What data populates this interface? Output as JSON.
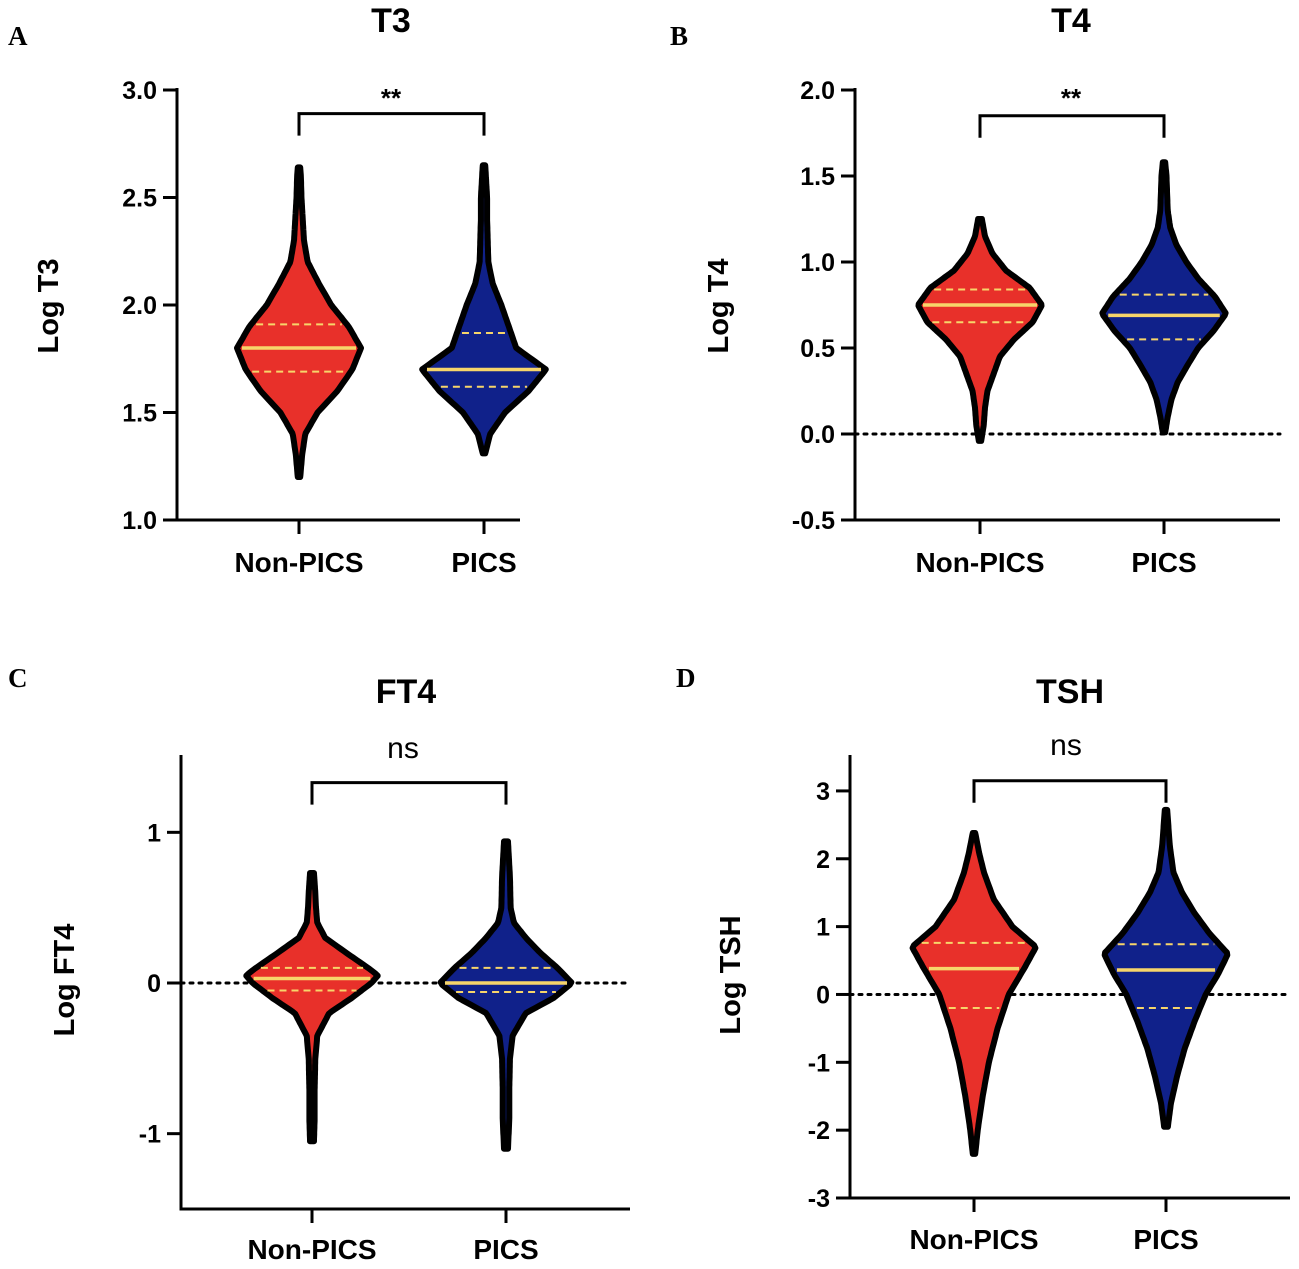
{
  "chart_data": [
    {
      "type": "violin",
      "panel_letter": "A",
      "title": "T3",
      "ylabel": "Log T3",
      "categories": [
        "Non-PICS",
        "PICS"
      ],
      "ylim": [
        1.0,
        3.0
      ],
      "yticks": [
        1.0,
        1.5,
        2.0,
        2.5,
        3.0
      ],
      "ytick_labels": [
        "1.0",
        "1.5",
        "2.0",
        "2.5",
        "3.0"
      ],
      "zero_line": false,
      "significance": {
        "label": "**",
        "between": [
          "Non-PICS",
          "PICS"
        ],
        "bar_y": 2.89
      },
      "series": [
        {
          "name": "Non-PICS",
          "color": "#e8302a",
          "min": 1.2,
          "max": 2.64,
          "q1": 1.69,
          "median": 1.8,
          "q3": 1.91,
          "density": [
            [
              1.2,
              0.02
            ],
            [
              1.3,
              0.05
            ],
            [
              1.4,
              0.1
            ],
            [
              1.5,
              0.3
            ],
            [
              1.6,
              0.62
            ],
            [
              1.7,
              0.86
            ],
            [
              1.8,
              1.0
            ],
            [
              1.9,
              0.8
            ],
            [
              2.0,
              0.52
            ],
            [
              2.1,
              0.32
            ],
            [
              2.2,
              0.14
            ],
            [
              2.3,
              0.08
            ],
            [
              2.4,
              0.06
            ],
            [
              2.5,
              0.04
            ],
            [
              2.6,
              0.03
            ],
            [
              2.64,
              0.02
            ]
          ]
        },
        {
          "name": "PICS",
          "color": "#10218a",
          "min": 1.31,
          "max": 2.65,
          "q1": 1.62,
          "median": 1.7,
          "q3": 1.87,
          "density": [
            [
              1.31,
              0.02
            ],
            [
              1.4,
              0.1
            ],
            [
              1.5,
              0.34
            ],
            [
              1.6,
              0.72
            ],
            [
              1.7,
              1.0
            ],
            [
              1.8,
              0.52
            ],
            [
              1.9,
              0.4
            ],
            [
              2.0,
              0.28
            ],
            [
              2.1,
              0.14
            ],
            [
              2.2,
              0.07
            ],
            [
              2.3,
              0.06
            ],
            [
              2.4,
              0.05
            ],
            [
              2.5,
              0.05
            ],
            [
              2.6,
              0.03
            ],
            [
              2.65,
              0.02
            ]
          ]
        }
      ]
    },
    {
      "type": "violin",
      "panel_letter": "B",
      "title": "T4",
      "ylabel": "Log T4",
      "categories": [
        "Non-PICS",
        "PICS"
      ],
      "ylim": [
        -0.5,
        2.0
      ],
      "yticks": [
        -0.5,
        0.0,
        0.5,
        1.0,
        1.5,
        2.0
      ],
      "ytick_labels": [
        "-0.5",
        "0.0",
        "0.5",
        "1.0",
        "1.5",
        "2.0"
      ],
      "zero_line": true,
      "significance": {
        "label": "**",
        "between": [
          "Non-PICS",
          "PICS"
        ],
        "bar_y": 1.85
      },
      "series": [
        {
          "name": "Non-PICS",
          "color": "#e8302a",
          "min": -0.04,
          "max": 1.25,
          "q1": 0.65,
          "median": 0.75,
          "q3": 0.84,
          "density": [
            [
              -0.04,
              0.02
            ],
            [
              0.05,
              0.06
            ],
            [
              0.15,
              0.08
            ],
            [
              0.25,
              0.12
            ],
            [
              0.35,
              0.22
            ],
            [
              0.45,
              0.32
            ],
            [
              0.55,
              0.55
            ],
            [
              0.65,
              0.85
            ],
            [
              0.75,
              1.0
            ],
            [
              0.85,
              0.8
            ],
            [
              0.95,
              0.42
            ],
            [
              1.05,
              0.2
            ],
            [
              1.15,
              0.08
            ],
            [
              1.25,
              0.03
            ]
          ]
        },
        {
          "name": "PICS",
          "color": "#10218a",
          "min": 0.01,
          "max": 1.58,
          "q1": 0.55,
          "median": 0.69,
          "q3": 0.81,
          "density": [
            [
              0.01,
              0.02
            ],
            [
              0.1,
              0.06
            ],
            [
              0.2,
              0.12
            ],
            [
              0.3,
              0.22
            ],
            [
              0.4,
              0.38
            ],
            [
              0.5,
              0.55
            ],
            [
              0.6,
              0.8
            ],
            [
              0.7,
              1.0
            ],
            [
              0.8,
              0.82
            ],
            [
              0.9,
              0.56
            ],
            [
              1.0,
              0.36
            ],
            [
              1.1,
              0.2
            ],
            [
              1.2,
              0.1
            ],
            [
              1.3,
              0.06
            ],
            [
              1.4,
              0.05
            ],
            [
              1.5,
              0.04
            ],
            [
              1.58,
              0.02
            ]
          ]
        }
      ]
    },
    {
      "type": "violin",
      "panel_letter": "C",
      "title": "FT4",
      "ylabel": "Log FT4",
      "categories": [
        "Non-PICS",
        "PICS"
      ],
      "ylim": [
        -1.5,
        1.5
      ],
      "yticks": [
        -1,
        0,
        1
      ],
      "ytick_labels": [
        "-1",
        "0",
        "1"
      ],
      "zero_line": true,
      "significance": {
        "label": "ns",
        "between": [
          "Non-PICS",
          "PICS"
        ],
        "bar_y": 1.33
      },
      "series": [
        {
          "name": "Non-PICS",
          "color": "#e8302a",
          "min": -1.05,
          "max": 0.73,
          "q1": -0.05,
          "median": 0.03,
          "q3": 0.1,
          "density": [
            [
              -1.05,
              0.03
            ],
            [
              -0.9,
              0.04
            ],
            [
              -0.7,
              0.04
            ],
            [
              -0.5,
              0.05
            ],
            [
              -0.35,
              0.08
            ],
            [
              -0.2,
              0.26
            ],
            [
              -0.1,
              0.6
            ],
            [
              0.0,
              0.9
            ],
            [
              0.05,
              1.0
            ],
            [
              0.1,
              0.85
            ],
            [
              0.2,
              0.52
            ],
            [
              0.3,
              0.2
            ],
            [
              0.4,
              0.08
            ],
            [
              0.5,
              0.06
            ],
            [
              0.6,
              0.05
            ],
            [
              0.73,
              0.03
            ]
          ]
        },
        {
          "name": "PICS",
          "color": "#10218a",
          "min": -1.1,
          "max": 0.94,
          "q1": -0.06,
          "median": 0.0,
          "q3": 0.1,
          "density": [
            [
              -1.1,
              0.03
            ],
            [
              -0.9,
              0.05
            ],
            [
              -0.7,
              0.05
            ],
            [
              -0.5,
              0.06
            ],
            [
              -0.35,
              0.1
            ],
            [
              -0.2,
              0.3
            ],
            [
              -0.1,
              0.72
            ],
            [
              0.0,
              1.0
            ],
            [
              0.1,
              0.78
            ],
            [
              0.2,
              0.52
            ],
            [
              0.3,
              0.3
            ],
            [
              0.4,
              0.12
            ],
            [
              0.5,
              0.07
            ],
            [
              0.7,
              0.06
            ],
            [
              0.94,
              0.03
            ]
          ]
        }
      ]
    },
    {
      "type": "violin",
      "panel_letter": "D",
      "title": "TSH",
      "ylabel": "Log TSH",
      "categories": [
        "Non-PICS",
        "PICS"
      ],
      "ylim": [
        -3,
        3.5
      ],
      "yticks": [
        -3,
        -2,
        -1,
        0,
        1,
        2,
        3
      ],
      "ytick_labels": [
        "-3",
        "-2",
        "-1",
        "0",
        "1",
        "2",
        "3"
      ],
      "zero_line": true,
      "significance": {
        "label": "ns",
        "between": [
          "Non-PICS",
          "PICS"
        ],
        "bar_y": 3.15
      },
      "series": [
        {
          "name": "Non-PICS",
          "color": "#e8302a",
          "min": -2.35,
          "max": 2.38,
          "q1": -0.2,
          "median": 0.38,
          "q3": 0.76,
          "density": [
            [
              -2.35,
              0.02
            ],
            [
              -2.0,
              0.06
            ],
            [
              -1.5,
              0.14
            ],
            [
              -1.0,
              0.24
            ],
            [
              -0.5,
              0.38
            ],
            [
              0.0,
              0.56
            ],
            [
              0.4,
              0.82
            ],
            [
              0.7,
              1.0
            ],
            [
              1.0,
              0.62
            ],
            [
              1.4,
              0.32
            ],
            [
              1.8,
              0.16
            ],
            [
              2.1,
              0.08
            ],
            [
              2.38,
              0.02
            ]
          ]
        },
        {
          "name": "PICS",
          "color": "#10218a",
          "min": -1.95,
          "max": 2.72,
          "q1": -0.2,
          "median": 0.36,
          "q3": 0.74,
          "density": [
            [
              -1.95,
              0.03
            ],
            [
              -1.6,
              0.08
            ],
            [
              -1.2,
              0.18
            ],
            [
              -0.8,
              0.3
            ],
            [
              -0.4,
              0.46
            ],
            [
              0.0,
              0.64
            ],
            [
              0.3,
              0.84
            ],
            [
              0.6,
              1.0
            ],
            [
              0.9,
              0.7
            ],
            [
              1.2,
              0.46
            ],
            [
              1.5,
              0.26
            ],
            [
              1.8,
              0.12
            ],
            [
              2.2,
              0.06
            ],
            [
              2.72,
              0.02
            ]
          ]
        }
      ]
    }
  ]
}
